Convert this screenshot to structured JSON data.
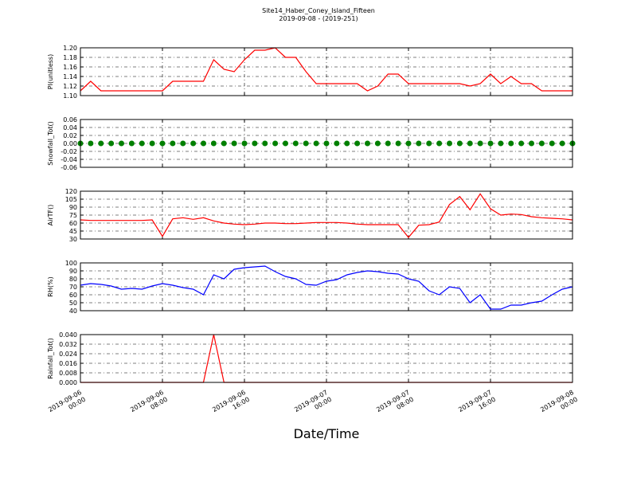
{
  "title": "Site14_Haber_Coney_Island_Fifteen",
  "subtitle": "2019-09-08 - (2019-251)",
  "xlabel": "Date/Time",
  "x": [
    "2019-09-06 00:00",
    "2019-09-06 01:00",
    "2019-09-06 02:00",
    "2019-09-06 03:00",
    "2019-09-06 04:00",
    "2019-09-06 05:00",
    "2019-09-06 06:00",
    "2019-09-06 07:00",
    "2019-09-06 08:00",
    "2019-09-06 09:00",
    "2019-09-06 10:00",
    "2019-09-06 11:00",
    "2019-09-06 12:00",
    "2019-09-06 13:00",
    "2019-09-06 14:00",
    "2019-09-06 15:00",
    "2019-09-06 16:00",
    "2019-09-06 17:00",
    "2019-09-06 18:00",
    "2019-09-06 19:00",
    "2019-09-06 20:00",
    "2019-09-06 21:00",
    "2019-09-06 22:00",
    "2019-09-06 23:00",
    "2019-09-07 00:00",
    "2019-09-07 01:00",
    "2019-09-07 02:00",
    "2019-09-07 03:00",
    "2019-09-07 04:00",
    "2019-09-07 05:00",
    "2019-09-07 06:00",
    "2019-09-07 07:00",
    "2019-09-07 08:00",
    "2019-09-07 09:00",
    "2019-09-07 10:00",
    "2019-09-07 11:00",
    "2019-09-07 12:00",
    "2019-09-07 13:00",
    "2019-09-07 14:00",
    "2019-09-07 15:00",
    "2019-09-07 16:00",
    "2019-09-07 17:00",
    "2019-09-07 18:00",
    "2019-09-07 19:00",
    "2019-09-07 20:00",
    "2019-09-07 21:00",
    "2019-09-07 22:00",
    "2019-09-07 23:00",
    "2019-09-08 00:00"
  ],
  "xlim": [
    "2019-09-06 00:00",
    "2019-09-08 00:00"
  ],
  "xticks": [
    "2019-09-06 00:00",
    "2019-09-06 08:00",
    "2019-09-06 16:00",
    "2019-09-07 00:00",
    "2019-09-07 08:00",
    "2019-09-07 16:00",
    "2019-09-08 00:00"
  ],
  "chart_data": [
    {
      "type": "line",
      "ylabel": "PI(unitless)",
      "color": "#ff0000",
      "grid": true,
      "ylim": [
        1.1,
        1.2
      ],
      "yticks": [
        {
          "value": 1.1,
          "label": "1.10"
        },
        1.12,
        1.14,
        1.16,
        1.18,
        {
          "value": 1.2,
          "label": "1.20"
        }
      ],
      "values": [
        1.11,
        1.13,
        1.11,
        1.11,
        1.11,
        1.11,
        1.11,
        1.11,
        1.11,
        1.13,
        1.13,
        1.13,
        1.13,
        1.175,
        1.155,
        1.15,
        1.175,
        1.195,
        1.195,
        1.2,
        1.18,
        1.18,
        1.15,
        1.125,
        1.125,
        1.125,
        1.125,
        1.125,
        1.11,
        1.12,
        1.145,
        1.145,
        1.125,
        1.125,
        1.125,
        1.125,
        1.125,
        1.125,
        1.12,
        1.125,
        1.145,
        1.125,
        1.14,
        1.125,
        1.125,
        1.11,
        1.11,
        1.11,
        1.11
      ]
    },
    {
      "type": "scatter",
      "ylabel": "Snowfall_Tot()",
      "color": "#008000",
      "grid": true,
      "ylim": [
        -0.06,
        0.06
      ],
      "yticks": [
        -0.06,
        -0.04,
        -0.02,
        {
          "value": 0,
          "label": "0.00"
        },
        0.02,
        0.04,
        0.06
      ],
      "values": [
        0,
        0,
        0,
        0,
        0,
        0,
        0,
        0,
        0,
        0,
        0,
        0,
        0,
        0,
        0,
        0,
        0,
        0,
        0,
        0,
        0,
        0,
        0,
        0,
        0,
        0,
        0,
        0,
        0,
        0,
        0,
        0,
        0,
        0,
        0,
        0,
        0,
        0,
        0,
        0,
        0,
        0,
        0,
        0,
        0,
        0,
        0,
        0,
        0
      ]
    },
    {
      "type": "line",
      "ylabel": "AirTF()",
      "color": "#ff0000",
      "grid": true,
      "ylim": [
        30,
        120
      ],
      "yticks": [
        30,
        45,
        60,
        75,
        90,
        105,
        120
      ],
      "values": [
        66,
        65,
        65,
        65,
        65,
        65,
        65,
        66,
        35,
        68,
        70,
        67,
        70,
        64,
        60,
        58,
        57,
        58,
        60,
        60,
        59,
        59,
        60,
        61,
        61,
        61,
        60,
        58,
        57,
        57,
        57,
        57,
        33,
        56,
        57,
        62,
        95,
        110,
        85,
        115,
        87,
        75,
        77,
        76,
        72,
        70,
        69,
        68,
        66
      ]
    },
    {
      "type": "line",
      "ylabel": "RH(%)",
      "color": "#0000ff",
      "grid": true,
      "ylim": [
        40,
        100
      ],
      "yticks": [
        40,
        50,
        60,
        70,
        80,
        90,
        100
      ],
      "values": [
        72,
        74,
        73,
        71,
        67,
        68,
        67,
        71,
        74,
        72,
        69,
        67,
        60,
        85,
        80,
        92,
        94,
        95,
        96,
        89,
        83,
        80,
        73,
        72,
        77,
        79,
        85,
        88,
        90,
        89,
        87,
        86,
        80,
        77,
        65,
        60,
        70,
        68,
        50,
        60,
        42,
        42,
        47,
        47,
        50,
        52,
        60,
        67,
        70
      ]
    },
    {
      "type": "line",
      "ylabel": "Rainfall_Tot()",
      "color": "#ff0000",
      "grid": true,
      "ylim": [
        0,
        0.04
      ],
      "yticks": [
        {
          "value": 0,
          "label": "0.000"
        },
        0.008,
        0.016,
        0.024,
        0.032,
        {
          "value": 0.04,
          "label": "0.040"
        }
      ],
      "values": [
        0,
        0,
        0,
        0,
        0,
        0,
        0,
        0,
        0,
        0,
        0,
        0,
        0,
        0.04,
        0,
        0,
        0,
        0,
        0,
        0,
        0,
        0,
        0,
        0,
        0,
        0,
        0,
        0,
        0,
        0,
        0,
        0,
        0,
        0,
        0,
        0,
        0,
        0,
        0,
        0,
        0,
        0,
        0,
        0,
        0,
        0,
        0,
        0,
        0
      ]
    }
  ]
}
